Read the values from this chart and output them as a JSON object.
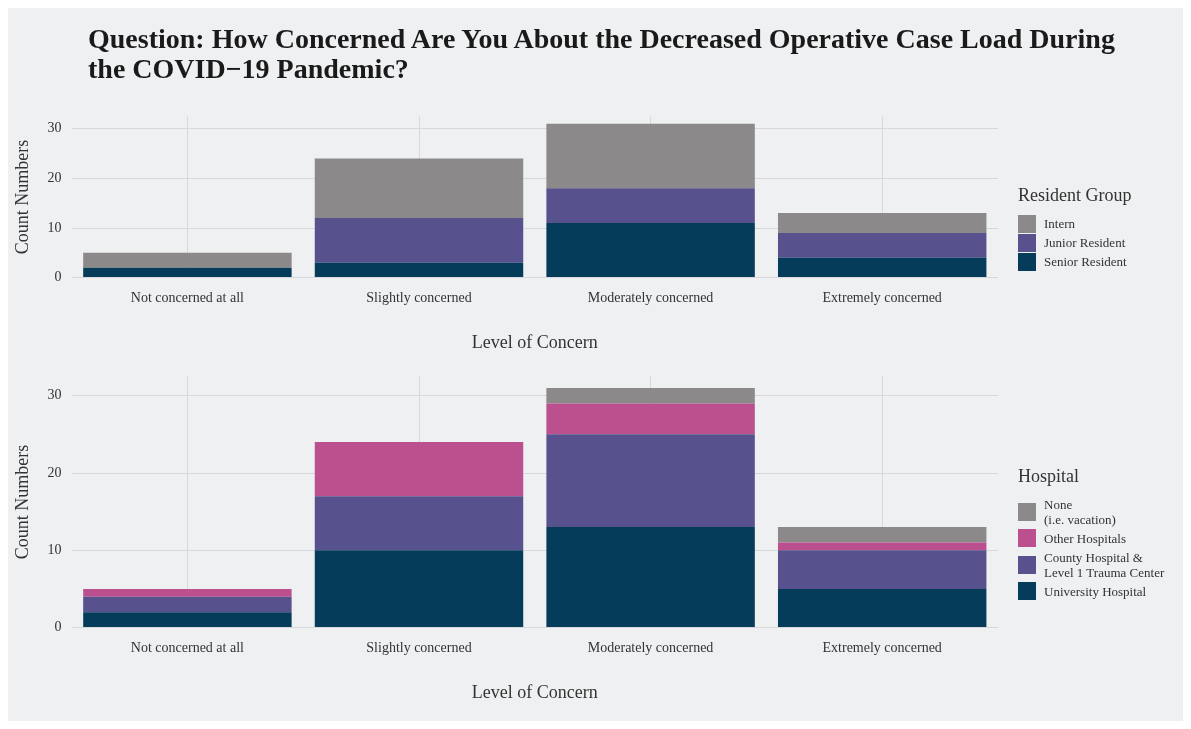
{
  "chart_data": [
    {
      "type": "bar",
      "title": "Question: How Concerned Are You About the Decreased Operative Case Load During the COVID−19 Pandemic?",
      "xlabel": "Level of Concern",
      "ylabel": "Count Numbers",
      "legend_title": "Resident Group",
      "categories": [
        "Not concerned at all",
        "Slightly concerned",
        "Moderately concerned",
        "Extremely concerned"
      ],
      "stacked": true,
      "ylim": [
        0,
        32.5
      ],
      "yticks": [
        0,
        10,
        20,
        30
      ],
      "grid": true,
      "legend": "right",
      "series": [
        {
          "name": "Senior Resident",
          "color": "#053c5a",
          "values": [
            2,
            3,
            11,
            4
          ]
        },
        {
          "name": "Junior Resident",
          "color": "#57518e",
          "values": [
            0,
            9,
            7,
            5
          ]
        },
        {
          "name": "Intern",
          "color": "#8b8989",
          "values": [
            3,
            12,
            13,
            4
          ]
        }
      ]
    },
    {
      "type": "bar",
      "xlabel": "Level of Concern",
      "ylabel": "Count Numbers",
      "legend_title": "Hospital",
      "categories": [
        "Not concerned at all",
        "Slightly concerned",
        "Moderately concerned",
        "Extremely concerned"
      ],
      "stacked": true,
      "ylim": [
        0,
        32.5
      ],
      "yticks": [
        0,
        10,
        20,
        30
      ],
      "grid": true,
      "legend": "right",
      "series": [
        {
          "name": "University Hospital",
          "color": "#053c5a",
          "values": [
            2,
            10,
            13,
            5
          ]
        },
        {
          "name": "County Hospital &\nLevel 1 Trauma Center",
          "color": "#57518e",
          "values": [
            2,
            7,
            12,
            5
          ]
        },
        {
          "name": "Other Hospitals",
          "color": "#bc4f8d",
          "values": [
            1,
            7,
            4,
            1
          ]
        },
        {
          "name": "None\n(i.e. vacation)",
          "color": "#8b8989",
          "values": [
            0,
            0,
            2,
            2
          ]
        }
      ]
    }
  ]
}
